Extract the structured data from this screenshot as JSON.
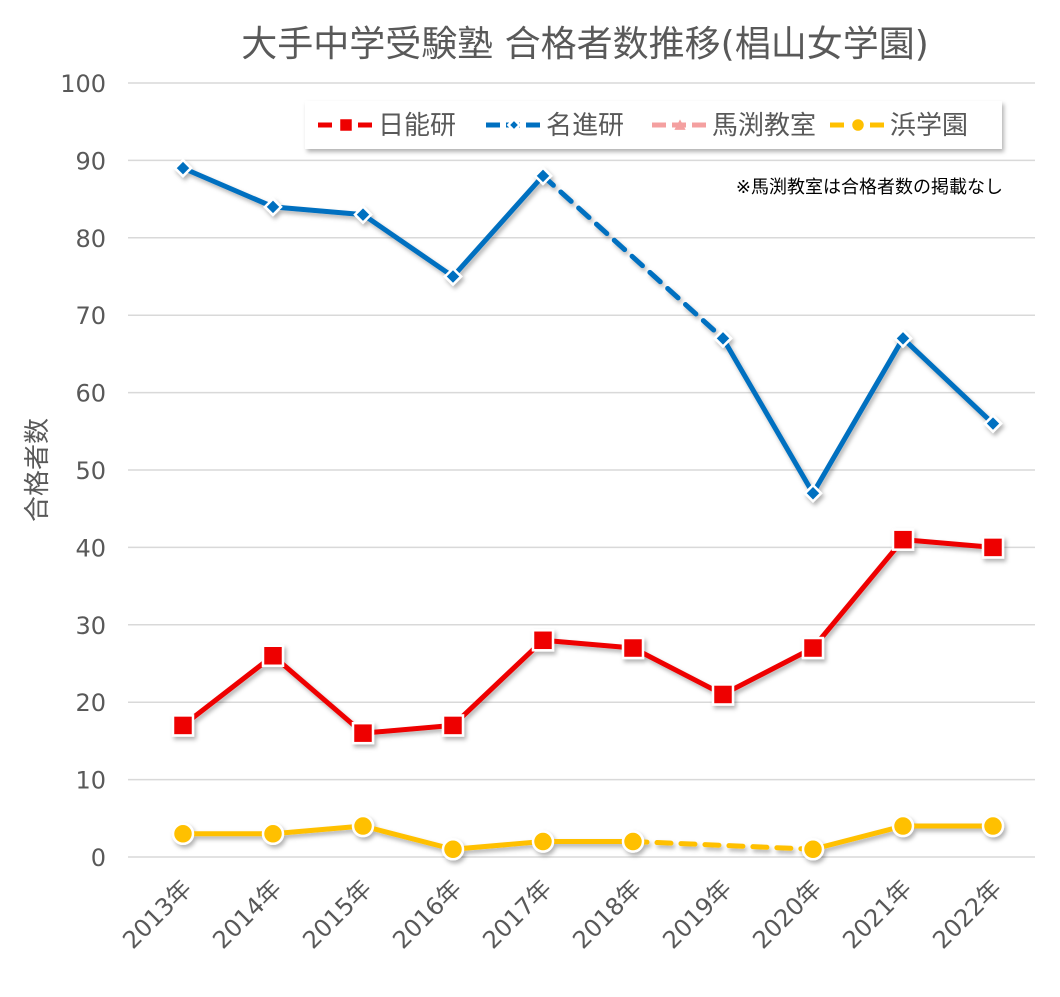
{
  "chart_data": {
    "type": "line",
    "title": "大手中学受験塾 合格者数推移(椙山女学園)",
    "xlabel": "",
    "ylabel": "合格者数",
    "ylim": [
      0,
      100
    ],
    "yticks": [
      0,
      10,
      20,
      30,
      40,
      50,
      60,
      70,
      80,
      90,
      100
    ],
    "categories": [
      "2013年",
      "2014年",
      "2015年",
      "2016年",
      "2017年",
      "2018年",
      "2019年",
      "2020年",
      "2021年",
      "2022年"
    ],
    "grid": true,
    "legend_position": "top-right",
    "annotation": "※馬渕教室は合格者数の掲載なし",
    "series": [
      {
        "name": "日能研",
        "color": "#EE0000",
        "marker": "square",
        "values": [
          17,
          26,
          16,
          17,
          28,
          27,
          21,
          27,
          41,
          40
        ]
      },
      {
        "name": "名進研",
        "color": "#0070C0",
        "marker": "diamond",
        "values": [
          89,
          84,
          83,
          75,
          88,
          null,
          67,
          47,
          67,
          56
        ]
      },
      {
        "name": "馬渕教室",
        "color": "#F4A0A0",
        "marker": "triangle",
        "values": [
          null,
          null,
          null,
          null,
          null,
          null,
          null,
          null,
          null,
          null
        ]
      },
      {
        "name": "浜学園",
        "color": "#FFC000",
        "marker": "circle",
        "values": [
          3,
          3,
          4,
          1,
          2,
          2,
          null,
          1,
          4,
          4
        ]
      }
    ]
  }
}
